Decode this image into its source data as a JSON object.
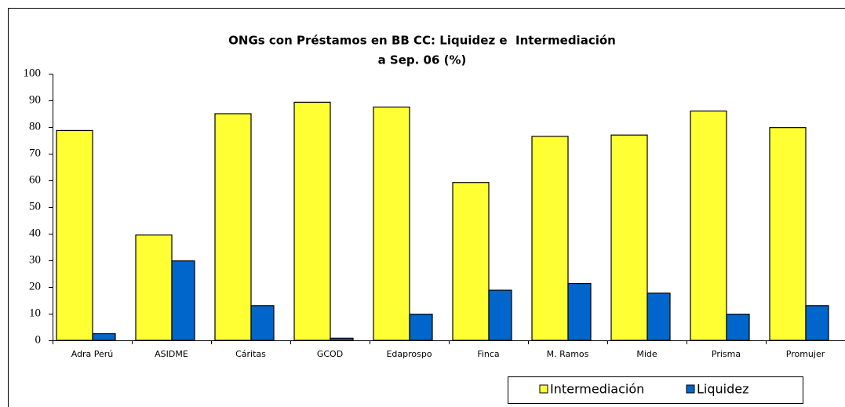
{
  "chart_data": {
    "type": "bar",
    "title": "ONGs con Préstamos en BB CC: Liquidez e  Intermediación",
    "subtitle": "a Sep. 06 (%)",
    "categories": [
      "Adra Perú",
      "ASIDME",
      "Cáritas",
      "GCOD",
      "Edaprospo",
      "Finca",
      "M. Ramos",
      "Mide",
      "Prisma",
      "Promujer"
    ],
    "series": [
      {
        "name": "Intermediación",
        "color": "#ffff33",
        "values": [
          78.7,
          39.5,
          85,
          89.3,
          87.5,
          59.2,
          76.5,
          77,
          86,
          79.8
        ]
      },
      {
        "name": "Liquidez",
        "color": "#0066cc",
        "values": [
          2.5,
          29.8,
          13,
          0.8,
          9.8,
          18.8,
          21.3,
          17.7,
          9.8,
          13
        ]
      }
    ],
    "ylim": [
      0,
      100
    ],
    "yticks": [
      0,
      10,
      20,
      30,
      40,
      50,
      60,
      70,
      80,
      90,
      100
    ],
    "grid": false,
    "legend": "bottom-right"
  }
}
